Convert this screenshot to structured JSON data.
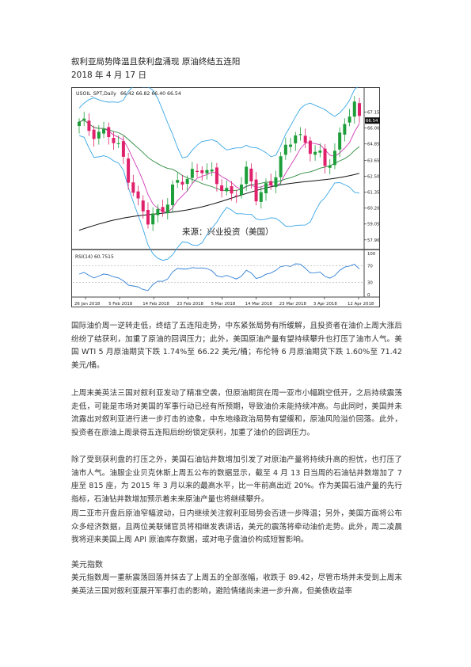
{
  "doc": {
    "title": "叙利亚局势降温且获利盘涌现 原油终结五连阳",
    "date": "2018 年 4 月 17 日"
  },
  "chart": {
    "header": "USOIL_SPT,Daily",
    "header_values": "66.42 66.82 66.40 66.54",
    "watermark": "来源：兴业投资（美国）",
    "last_price": "66.54",
    "price_ticks": [
      "67.15",
      "66.00",
      "64.85",
      "63.65",
      "62.50",
      "61.35",
      "60.20",
      "59.05",
      "57.90"
    ],
    "rsi_label": "RSI(14) 60.7515",
    "rsi_ticks": [
      "100",
      "70",
      "30",
      "0"
    ],
    "date_ticks": [
      "26 Jan 2018",
      "5 Feb 2018",
      "14 Feb 2018",
      "23 Feb 2018",
      "5 Mar 2018",
      "14 Mar 2018",
      "23 Mar 2018",
      "3 Apr 2018",
      "12 Apr 2018"
    ],
    "colors": {
      "up": "#1e9e3a",
      "down": "#e0206a",
      "band": "#38a6e6",
      "ma_slow": "#111111",
      "ma_mid": "#2b8a3e",
      "ma_fast": "#d23ab8",
      "rsi": "#2f7fd6"
    }
  },
  "paragraphs": [
    "国际油价周一逆转走低，终结了五连阳走势，中东紧张局势有所缓解，且投资者在油价上周大涨后纷纷了结获利，加重了原油的回调压力；此外，美国原油产量有望持续攀升也打压了油市人气。美国 WTI 5 月原油期货下跌 1.74%至 66.22 美元/桶；布伦特 6 月原油期货下跌 1.60%至 71.42 美元/桶。",
    "上周末美英法三国对叙利亚发动了精准空袭，但原油期货在周一亚市小幅跳空低开，之后持续震荡走低，可能是市场对美国的军事行动已经有所预期，导致油价未能持续冲高。与此同时，美国并未流露出对叙利亚进行进一步打击的迹象，中东地缘政治局势有望缓和，原油风险溢价回落。此外，投资者在原油上周录得五连阳后纷纷锁定获利，加重了油价的回调压力。",
    "除了受到获利盘的打压之外，美国石油钻井数增加引发了对原油产量将持续升高的担忧，也打压了油市人气。油服企业贝克休斯上周五公布的数据显示，截至 4 月 13 日当周的石油钻井数增加了 7 座至 815 座，为 2015 年 3 月以来的最高水平，比一年前高出近 20%。作为美国石油产量的先行指标，石油钻井数增加预示着未来原油产量也将继续攀升。",
    "周二亚市开盘后原油窄幅波动，日内继续关注叙利亚局势会否进一步降温；另外，美国方面将公布众多经济数据，且两位美联储官员将相继发表讲话，美元的震荡将牵动油价走势。此外，周二凌晨我将迎来美国上周 API 原油库存数据，或对电子盘油价构成短暂影响。",
    "美元指数周一重新震荡回落并抹去了上周五的全部涨幅，收跌于 89.42，尽管市场并未受到上周末美英法三国对叙利亚展开军事打击的影响，避险情绪尚未进一步升高，但美债收益率"
  ],
  "section_heading": "美元指数"
}
